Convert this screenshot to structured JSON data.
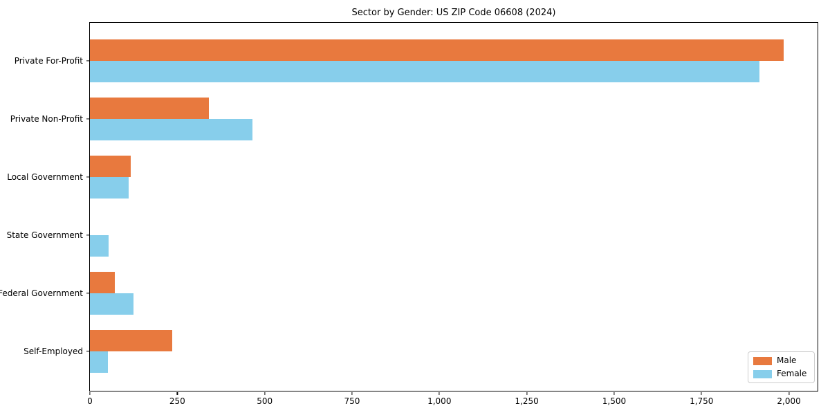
{
  "chart_data": {
    "type": "bar",
    "orientation": "horizontal",
    "title": "Sector by Gender: US ZIP Code 06608 (2024)",
    "categories": [
      "Private For-Profit",
      "Private Non-Profit",
      "Local Government",
      "State Government",
      "Federal Government",
      "Self-Employed"
    ],
    "series": [
      {
        "name": "Male",
        "color": "#E8793E",
        "values": [
          1985,
          340,
          117,
          0,
          71,
          235
        ]
      },
      {
        "name": "Female",
        "color": "#87CEEB",
        "values": [
          1915,
          465,
          110,
          53,
          125,
          52
        ]
      }
    ],
    "x_ticks": [
      "0",
      "250",
      "500",
      "750",
      "1,000",
      "1,250",
      "1,500",
      "1,750",
      "2,000"
    ],
    "x_tick_values": [
      0,
      250,
      500,
      750,
      1000,
      1250,
      1500,
      1750,
      2000
    ],
    "xlim": [
      0,
      2080
    ],
    "xlabel": "",
    "ylabel": "",
    "grid": false,
    "legend": {
      "position": "lower right",
      "entries": [
        "Male",
        "Female"
      ]
    }
  }
}
